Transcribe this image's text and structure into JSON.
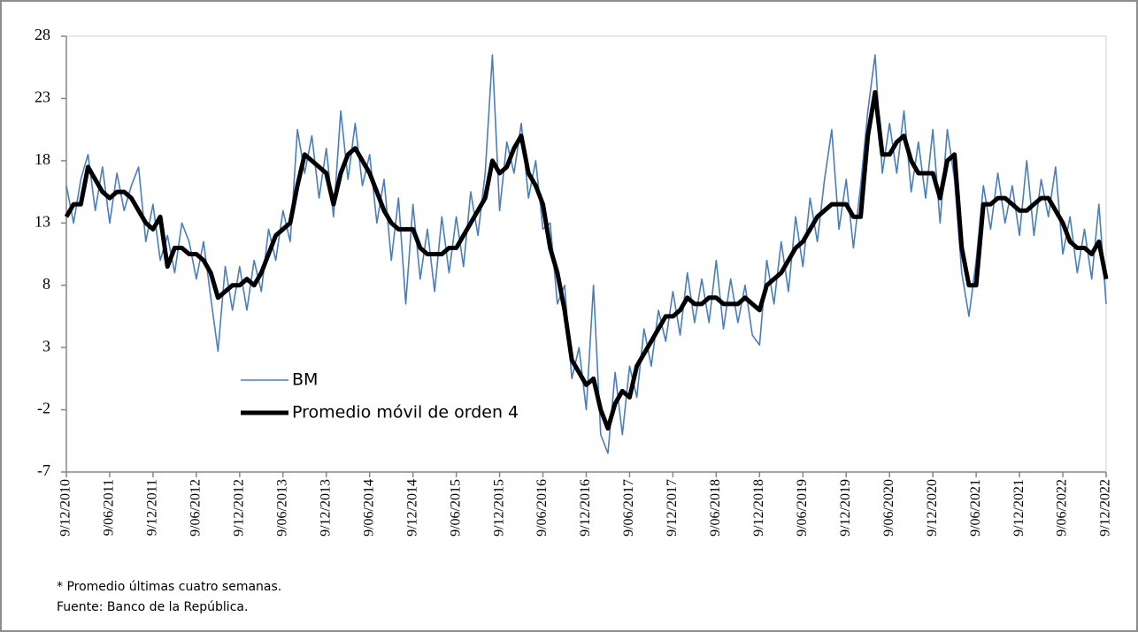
{
  "chart_data": {
    "type": "line",
    "x": [
      "9/12/2010",
      "9/01/2011",
      "9/02/2011",
      "9/03/2011",
      "9/04/2011",
      "9/05/2011",
      "9/06/2011",
      "9/07/2011",
      "9/08/2011",
      "9/09/2011",
      "9/10/2011",
      "9/11/2011",
      "9/12/2011",
      "9/01/2012",
      "9/02/2012",
      "9/03/2012",
      "9/04/2012",
      "9/05/2012",
      "9/06/2012",
      "9/07/2012",
      "9/08/2012",
      "9/09/2012",
      "9/10/2012",
      "9/11/2012",
      "9/12/2012",
      "9/01/2013",
      "9/02/2013",
      "9/03/2013",
      "9/04/2013",
      "9/05/2013",
      "9/06/2013",
      "9/07/2013",
      "9/08/2013",
      "9/09/2013",
      "9/10/2013",
      "9/11/2013",
      "9/12/2013",
      "9/01/2014",
      "9/02/2014",
      "9/03/2014",
      "9/04/2014",
      "9/05/2014",
      "9/06/2014",
      "9/07/2014",
      "9/08/2014",
      "9/09/2014",
      "9/10/2014",
      "9/11/2014",
      "9/12/2014",
      "9/01/2015",
      "9/02/2015",
      "9/03/2015",
      "9/04/2015",
      "9/05/2015",
      "9/06/2015",
      "9/07/2015",
      "9/08/2015",
      "9/09/2015",
      "9/10/2015",
      "9/11/2015",
      "9/12/2015",
      "9/01/2016",
      "9/02/2016",
      "9/03/2016",
      "9/04/2016",
      "9/05/2016",
      "9/06/2016",
      "9/07/2016",
      "9/08/2016",
      "9/09/2016",
      "9/10/2016",
      "9/11/2016",
      "9/12/2016",
      "9/01/2017",
      "9/02/2017",
      "9/03/2017",
      "9/04/2017",
      "9/05/2017",
      "9/06/2017",
      "9/07/2017",
      "9/08/2017",
      "9/09/2017",
      "9/10/2017",
      "9/11/2017",
      "9/12/2017",
      "9/01/2018",
      "9/02/2018",
      "9/03/2018",
      "9/04/2018",
      "9/05/2018",
      "9/06/2018",
      "9/07/2018",
      "9/08/2018",
      "9/09/2018",
      "9/10/2018",
      "9/11/2018",
      "9/12/2018",
      "9/01/2019",
      "9/02/2019",
      "9/03/2019",
      "9/04/2019",
      "9/05/2019",
      "9/06/2019",
      "9/07/2019",
      "9/08/2019",
      "9/09/2019",
      "9/10/2019",
      "9/11/2019",
      "9/12/2019",
      "9/01/2020",
      "9/02/2020",
      "9/03/2020",
      "9/04/2020",
      "9/05/2020",
      "9/06/2020",
      "9/07/2020",
      "9/08/2020",
      "9/09/2020",
      "9/10/2020",
      "9/11/2020",
      "9/12/2020",
      "9/01/2021",
      "9/02/2021",
      "9/03/2021",
      "9/04/2021",
      "9/05/2021",
      "9/06/2021",
      "9/07/2021",
      "9/08/2021",
      "9/09/2021",
      "9/10/2021",
      "9/11/2021",
      "9/12/2021",
      "9/01/2022",
      "9/02/2022",
      "9/03/2022",
      "9/04/2022",
      "9/05/2022",
      "9/06/2022",
      "9/07/2022",
      "9/08/2022",
      "9/09/2022",
      "9/10/2022",
      "9/11/2022",
      "9/12/2022"
    ],
    "series": [
      {
        "name": "BM",
        "color": "#4a7ebb",
        "width": 1.6,
        "values": [
          16,
          13,
          16.5,
          18.5,
          14,
          17.5,
          13,
          17,
          14,
          16,
          17.5,
          11.5,
          14.5,
          10,
          12,
          9,
          13,
          11.5,
          8.5,
          11.5,
          7,
          2.7,
          9.5,
          6,
          9.5,
          6,
          10,
          7.5,
          12.5,
          10,
          14,
          11.5,
          20.5,
          17,
          20,
          15,
          19,
          13.5,
          22,
          16.5,
          21,
          16,
          18.5,
          13,
          16.5,
          10,
          15,
          6.5,
          14.5,
          8.5,
          12.5,
          7.5,
          13.5,
          9,
          13.5,
          9.5,
          15.5,
          12,
          17,
          26.5,
          14,
          19.5,
          17,
          21,
          15,
          18,
          12.5,
          13,
          6.5,
          8,
          0.5,
          3,
          -2,
          8,
          -4,
          -5.5,
          1,
          -4,
          1.5,
          -1,
          4.5,
          1.5,
          6,
          3.5,
          7.5,
          4,
          9,
          5,
          8.5,
          5,
          10,
          4.5,
          8.5,
          5,
          8,
          4,
          3.2,
          10,
          6.5,
          11.5,
          7.5,
          13.5,
          9.5,
          15,
          11.5,
          16.5,
          20.5,
          12.5,
          16.5,
          11,
          16,
          22,
          26.5,
          17,
          21,
          17,
          22,
          15.5,
          19.5,
          15,
          20.5,
          13,
          20.5,
          16.5,
          9,
          5.5,
          10,
          16,
          12.5,
          17,
          13,
          16,
          12,
          18,
          12,
          16.5,
          13.5,
          17.5,
          10.5,
          13.5,
          9,
          12.5,
          8.5,
          14.5,
          6.5
        ]
      },
      {
        "name": "Promedio móvil de orden 4",
        "color": "#000000",
        "width": 5,
        "values": [
          13.5,
          14.5,
          14.5,
          17.5,
          16.5,
          15.5,
          15,
          15.5,
          15.5,
          15,
          14,
          13,
          12.5,
          13.5,
          9.5,
          11,
          11,
          10.5,
          10.5,
          10,
          9,
          7,
          7.5,
          8,
          8,
          8.5,
          8,
          9,
          10.5,
          12,
          12.5,
          13,
          16,
          18.5,
          18,
          17.5,
          17,
          14.5,
          17,
          18.5,
          19,
          18,
          17,
          15.5,
          14,
          13,
          12.5,
          12.5,
          12.5,
          11,
          10.5,
          10.5,
          10.5,
          11,
          11,
          12,
          13,
          14,
          15,
          18,
          17,
          17.5,
          19,
          20,
          17,
          16,
          14.5,
          11,
          9,
          6,
          2,
          1,
          0,
          0.5,
          -2,
          -3.5,
          -1.5,
          -0.5,
          -1,
          1.5,
          2.5,
          3.5,
          4.5,
          5.5,
          5.5,
          6,
          7,
          6.5,
          6.5,
          7,
          7,
          6.5,
          6.5,
          6.5,
          7,
          6.5,
          6,
          8,
          8.5,
          9,
          10,
          11,
          11.5,
          12.5,
          13.5,
          14,
          14.5,
          14.5,
          14.5,
          13.5,
          13.5,
          20,
          23.5,
          18.5,
          18.5,
          19.5,
          20,
          18,
          17,
          17,
          17,
          15,
          18,
          18.5,
          11,
          8,
          8,
          14.5,
          14.5,
          15,
          15,
          14.5,
          14,
          14,
          14.5,
          15,
          15,
          14,
          13,
          11.5,
          11,
          11,
          10.5,
          11.5,
          8.5
        ]
      }
    ],
    "xticks": [
      "9/12/2010",
      "9/06/2011",
      "9/12/2011",
      "9/06/2012",
      "9/12/2012",
      "9/06/2013",
      "9/12/2013",
      "9/06/2014",
      "9/12/2014",
      "9/06/2015",
      "9/12/2015",
      "9/06/2016",
      "9/12/2016",
      "9/06/2017",
      "9/12/2017",
      "9/06/2018",
      "9/12/2018",
      "9/06/2019",
      "9/12/2019",
      "9/06/2020",
      "9/12/2020",
      "9/06/2021",
      "9/12/2021",
      "9/06/2022",
      "9/12/2022"
    ],
    "ylim": [
      -7,
      28
    ],
    "yticks": [
      -7,
      -2,
      3,
      8,
      13,
      18,
      23,
      28
    ],
    "grid": false,
    "legend": "lower left",
    "notes": [
      "* Promedio últimas cuatro semanas.",
      "Fuente: Banco de la República."
    ]
  }
}
